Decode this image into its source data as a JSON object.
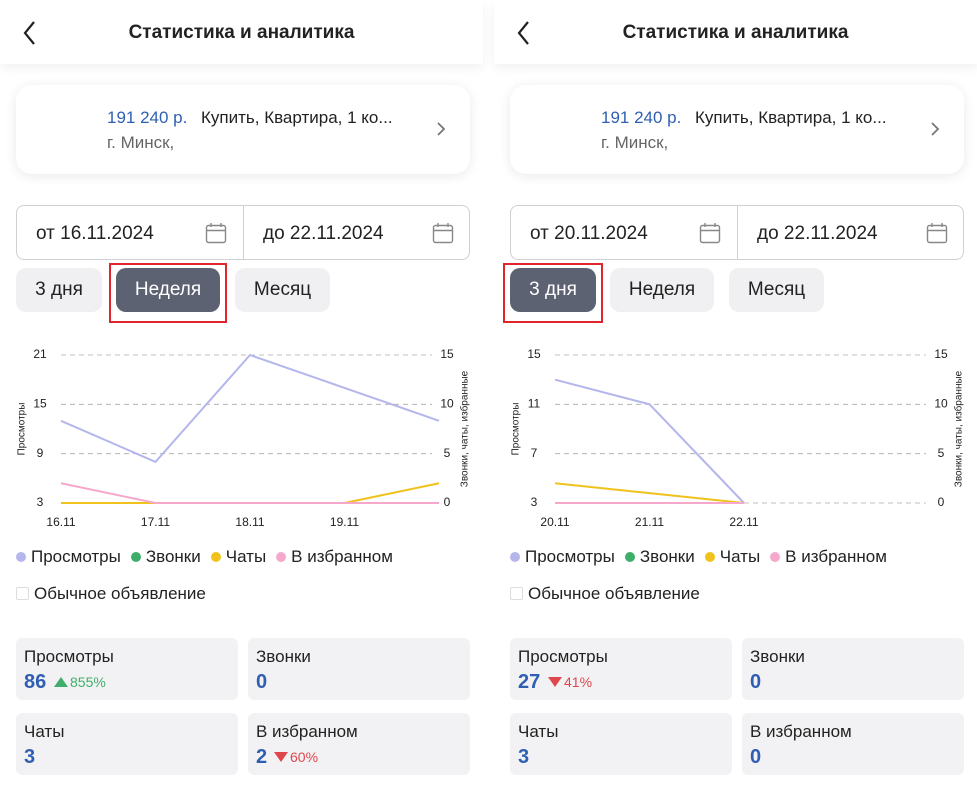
{
  "panels": [
    {
      "header": {
        "title": "Статистика и аналитика"
      },
      "listing": {
        "price": "191 240 р.",
        "title": "Купить, Квартира, 1 ко...",
        "city": "г. Минск,"
      },
      "date_from": "от 16.11.2024",
      "date_to": "до 22.11.2024",
      "periods": {
        "options": [
          "3 дня",
          "Неделя",
          "Месяц"
        ],
        "selected": 1
      },
      "chart_data": {
        "type": "line",
        "y_label": "Просмотры",
        "y2_label": "Звонки, чаты, избранные",
        "categories": [
          "16.11",
          "17.11",
          "18.11",
          "19.11",
          null
        ],
        "ylim": [
          3,
          21
        ],
        "yticks": [
          3,
          9,
          15,
          21
        ],
        "y2lim": [
          0,
          15
        ],
        "y2ticks": [
          0,
          5,
          10,
          15
        ],
        "grid": true,
        "series": [
          {
            "name": "Просмотры",
            "color": "#b4b6ec",
            "values": [
              13,
              8,
              21,
              17,
              13
            ]
          },
          {
            "name": "Звонки",
            "color": "#3fae6a",
            "axis": "y2",
            "values": [
              0,
              0,
              0,
              0,
              0
            ]
          },
          {
            "name": "Чаты",
            "color": "#efc21c",
            "axis": "y2",
            "values": [
              0,
              0,
              0,
              0,
              2
            ]
          },
          {
            "name": "В избранном",
            "color": "#f5a8cb",
            "axis": "y2",
            "values": [
              2,
              0,
              0,
              0,
              0
            ]
          }
        ]
      },
      "checkbox": "Обычное объявление",
      "stats": [
        {
          "label": "Просмотры",
          "value": "86",
          "change": "855%",
          "direction": "up"
        },
        {
          "label": "Звонки",
          "value": "0"
        },
        {
          "label": "Чаты",
          "value": "3"
        },
        {
          "label": "В избранном",
          "value": "2",
          "change": "60%",
          "direction": "down"
        }
      ]
    },
    {
      "header": {
        "title": "Статистика и аналитика"
      },
      "listing": {
        "price": "191 240 р.",
        "title": "Купить, Квартира, 1 ко...",
        "city": "г. Минск,"
      },
      "date_from": "от 20.11.2024",
      "date_to": "до 22.11.2024",
      "periods": {
        "options": [
          "3 дня",
          "Неделя",
          "Месяц"
        ],
        "selected": 0
      },
      "chart_data": {
        "type": "line",
        "y_label": "Просмотры",
        "y2_label": "Звонки, чаты, избранные",
        "categories": [
          "20.11",
          "21.11",
          "22.11"
        ],
        "ylim": [
          3,
          15
        ],
        "yticks": [
          3,
          7,
          11,
          15
        ],
        "y2lim": [
          0,
          15
        ],
        "y2ticks": [
          0,
          5,
          10,
          15
        ],
        "grid": true,
        "series": [
          {
            "name": "Просмотры",
            "color": "#b4b6ec",
            "values": [
              13,
              11,
              3
            ]
          },
          {
            "name": "Звонки",
            "color": "#3fae6a",
            "axis": "y2",
            "values": [
              0,
              0,
              0
            ]
          },
          {
            "name": "Чаты",
            "color": "#efc21c",
            "axis": "y2",
            "values": [
              2,
              1,
              0
            ]
          },
          {
            "name": "В избранном",
            "color": "#f5a8cb",
            "axis": "y2",
            "values": [
              0,
              0,
              0
            ]
          }
        ]
      },
      "checkbox": "Обычное объявление",
      "stats": [
        {
          "label": "Просмотры",
          "value": "27",
          "change": "41%",
          "direction": "down"
        },
        {
          "label": "Звонки",
          "value": "0"
        },
        {
          "label": "Чаты",
          "value": "3"
        },
        {
          "label": "В избранном",
          "value": "0"
        }
      ]
    }
  ]
}
